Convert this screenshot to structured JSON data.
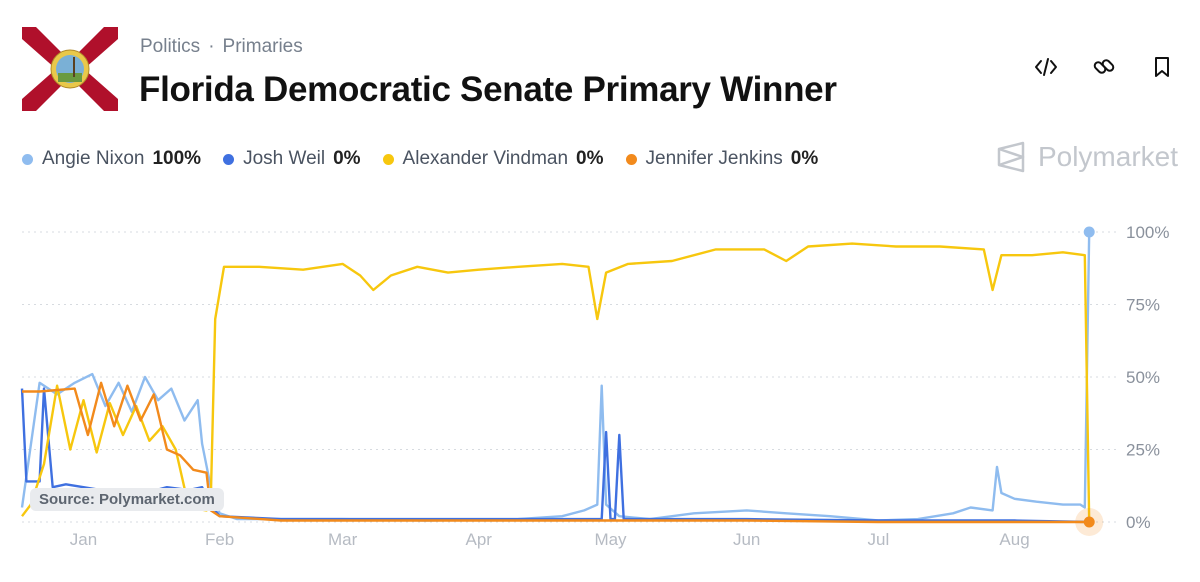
{
  "header": {
    "breadcrumb": [
      "Politics",
      "Primaries"
    ],
    "breadcrumb_sep": "·",
    "title": "Florida Democratic Senate Primary Winner",
    "flag_icon": "florida-flag"
  },
  "actions": [
    {
      "name": "embed-icon"
    },
    {
      "name": "link-icon"
    },
    {
      "name": "bookmark-icon"
    }
  ],
  "legend": [
    {
      "name": "Angie Nixon",
      "value": "100%",
      "color": "#8fbcef"
    },
    {
      "name": "Josh Weil",
      "value": "0%",
      "color": "#3f70e0"
    },
    {
      "name": "Alexander Vindman",
      "value": "0%",
      "color": "#f7c70e"
    },
    {
      "name": "Jennifer Jenkins",
      "value": "0%",
      "color": "#f28a1c"
    }
  ],
  "brand": "Polymarket",
  "source": "Source: Polymarket.com",
  "chart_data": {
    "type": "line",
    "title": "",
    "xlabel": "",
    "ylabel": "",
    "x_ticks": [
      "Jan",
      "Feb",
      "Mar",
      "Apr",
      "May",
      "Jun",
      "Jul",
      "Aug"
    ],
    "y_ticks": [
      "100%",
      "75%",
      "50%",
      "25%",
      "0%"
    ],
    "ylim": [
      0,
      100
    ],
    "xlim": [
      "Dec 18",
      "Aug 20"
    ],
    "grid": true,
    "legend_position": "top-left",
    "series": [
      {
        "name": "Angie Nixon",
        "color": "#8fbcef",
        "points": [
          [
            "Dec 18",
            5
          ],
          [
            "Dec 22",
            48
          ],
          [
            "Dec 26",
            44
          ],
          [
            "Dec 30",
            48
          ],
          [
            "Jan 3",
            51
          ],
          [
            "Jan 6",
            40
          ],
          [
            "Jan 9",
            48
          ],
          [
            "Jan 12",
            38
          ],
          [
            "Jan 15",
            50
          ],
          [
            "Jan 18",
            42
          ],
          [
            "Jan 21",
            46
          ],
          [
            "Jan 24",
            35
          ],
          [
            "Jan 27",
            42
          ],
          [
            "Jan 28",
            27
          ],
          [
            "Jan 30",
            12
          ],
          [
            "Feb 1",
            3
          ],
          [
            "Feb 5",
            1
          ],
          [
            "Feb 15",
            1
          ],
          [
            "Mar 1",
            1
          ],
          [
            "Mar 20",
            0.5
          ],
          [
            "Apr 10",
            1
          ],
          [
            "Apr 20",
            2
          ],
          [
            "Apr 25",
            4
          ],
          [
            "Apr 28",
            6
          ],
          [
            "Apr 29",
            47
          ],
          [
            "Apr 30",
            6
          ],
          [
            "May 3",
            2
          ],
          [
            "May 10",
            1
          ],
          [
            "May 20",
            3
          ],
          [
            "Jun 1",
            4
          ],
          [
            "Jun 10",
            3
          ],
          [
            "Jun 20",
            2
          ],
          [
            "Jul 1",
            0.5
          ],
          [
            "Jul 10",
            1
          ],
          [
            "Jul 18",
            3
          ],
          [
            "Jul 22",
            5
          ],
          [
            "Jul 27",
            4
          ],
          [
            "Jul 28",
            19
          ],
          [
            "Jul 29",
            10
          ],
          [
            "Aug 1",
            8
          ],
          [
            "Aug 6",
            7
          ],
          [
            "Aug 12",
            6
          ],
          [
            "Aug 16",
            6
          ],
          [
            "Aug 17",
            5
          ],
          [
            "Aug 18",
            100
          ]
        ]
      },
      {
        "name": "Josh Weil",
        "color": "#3f70e0",
        "points": [
          [
            "Dec 18",
            46
          ],
          [
            "Dec 19",
            14
          ],
          [
            "Dec 22",
            14
          ],
          [
            "Dec 23",
            46
          ],
          [
            "Dec 25",
            12
          ],
          [
            "Dec 28",
            13
          ],
          [
            "Jan 1",
            12
          ],
          [
            "Jan 5",
            11
          ],
          [
            "Jan 10",
            11
          ],
          [
            "Jan 15",
            10
          ],
          [
            "Jan 20",
            12
          ],
          [
            "Jan 25",
            11
          ],
          [
            "Jan 28",
            12
          ],
          [
            "Jan 30",
            6
          ],
          [
            "Feb 1",
            2
          ],
          [
            "Feb 15",
            1
          ],
          [
            "Mar 15",
            1
          ],
          [
            "Apr 10",
            1
          ],
          [
            "Apr 25",
            1
          ],
          [
            "Apr 29",
            1
          ],
          [
            "Apr 30",
            31
          ],
          [
            "May 1",
            1
          ],
          [
            "May 2",
            1
          ],
          [
            "May 3",
            30
          ],
          [
            "May 4",
            1
          ],
          [
            "May 15",
            1
          ],
          [
            "Jun 1",
            1
          ],
          [
            "Jul 1",
            0.5
          ],
          [
            "Aug 1",
            0.5
          ],
          [
            "Aug 18",
            0
          ]
        ]
      },
      {
        "name": "Alexander Vindman",
        "color": "#f7c70e",
        "points": [
          [
            "Dec 18",
            2
          ],
          [
            "Dec 20",
            6
          ],
          [
            "Dec 23",
            20
          ],
          [
            "Dec 26",
            47
          ],
          [
            "Dec 29",
            25
          ],
          [
            "Jan 1",
            42
          ],
          [
            "Jan 4",
            24
          ],
          [
            "Jan 7",
            41
          ],
          [
            "Jan 10",
            30
          ],
          [
            "Jan 13",
            40
          ],
          [
            "Jan 16",
            28
          ],
          [
            "Jan 19",
            33
          ],
          [
            "Jan 22",
            25
          ],
          [
            "Jan 25",
            5
          ],
          [
            "Jan 29",
            4
          ],
          [
            "Jan 30",
            8
          ],
          [
            "Jan 31",
            70
          ],
          [
            "Feb 2",
            88
          ],
          [
            "Feb 10",
            88
          ],
          [
            "Feb 20",
            87
          ],
          [
            "Mar 1",
            89
          ],
          [
            "Mar 5",
            85
          ],
          [
            "Mar 8",
            80
          ],
          [
            "Mar 12",
            85
          ],
          [
            "Mar 18",
            88
          ],
          [
            "Mar 25",
            86
          ],
          [
            "Apr 1",
            87
          ],
          [
            "Apr 10",
            88
          ],
          [
            "Apr 20",
            89
          ],
          [
            "Apr 26",
            88
          ],
          [
            "Apr 28",
            70
          ],
          [
            "Apr 30",
            86
          ],
          [
            "May 5",
            89
          ],
          [
            "May 15",
            90
          ],
          [
            "May 25",
            94
          ],
          [
            "Jun 5",
            94
          ],
          [
            "Jun 10",
            90
          ],
          [
            "Jun 15",
            95
          ],
          [
            "Jun 25",
            96
          ],
          [
            "Jul 5",
            95
          ],
          [
            "Jul 15",
            95
          ],
          [
            "Jul 25",
            94
          ],
          [
            "Jul 27",
            80
          ],
          [
            "Jul 29",
            92
          ],
          [
            "Aug 5",
            92
          ],
          [
            "Aug 12",
            93
          ],
          [
            "Aug 17",
            92
          ],
          [
            "Aug 18",
            0
          ]
        ]
      },
      {
        "name": "Jennifer Jenkins",
        "color": "#f28a1c",
        "points": [
          [
            "Dec 18",
            45
          ],
          [
            "Dec 22",
            45
          ],
          [
            "Dec 30",
            46
          ],
          [
            "Jan 2",
            30
          ],
          [
            "Jan 5",
            48
          ],
          [
            "Jan 8",
            33
          ],
          [
            "Jan 11",
            47
          ],
          [
            "Jan 14",
            35
          ],
          [
            "Jan 17",
            44
          ],
          [
            "Jan 20",
            25
          ],
          [
            "Jan 23",
            23
          ],
          [
            "Jan 26",
            18
          ],
          [
            "Jan 29",
            17
          ],
          [
            "Jan 30",
            4
          ],
          [
            "Feb 1",
            2
          ],
          [
            "Feb 15",
            0.5
          ],
          [
            "Apr 1",
            0.5
          ],
          [
            "May 1",
            0.5
          ],
          [
            "Jun 1",
            0.5
          ],
          [
            "Jul 1",
            0
          ],
          [
            "Aug 18",
            0
          ]
        ]
      }
    ]
  }
}
